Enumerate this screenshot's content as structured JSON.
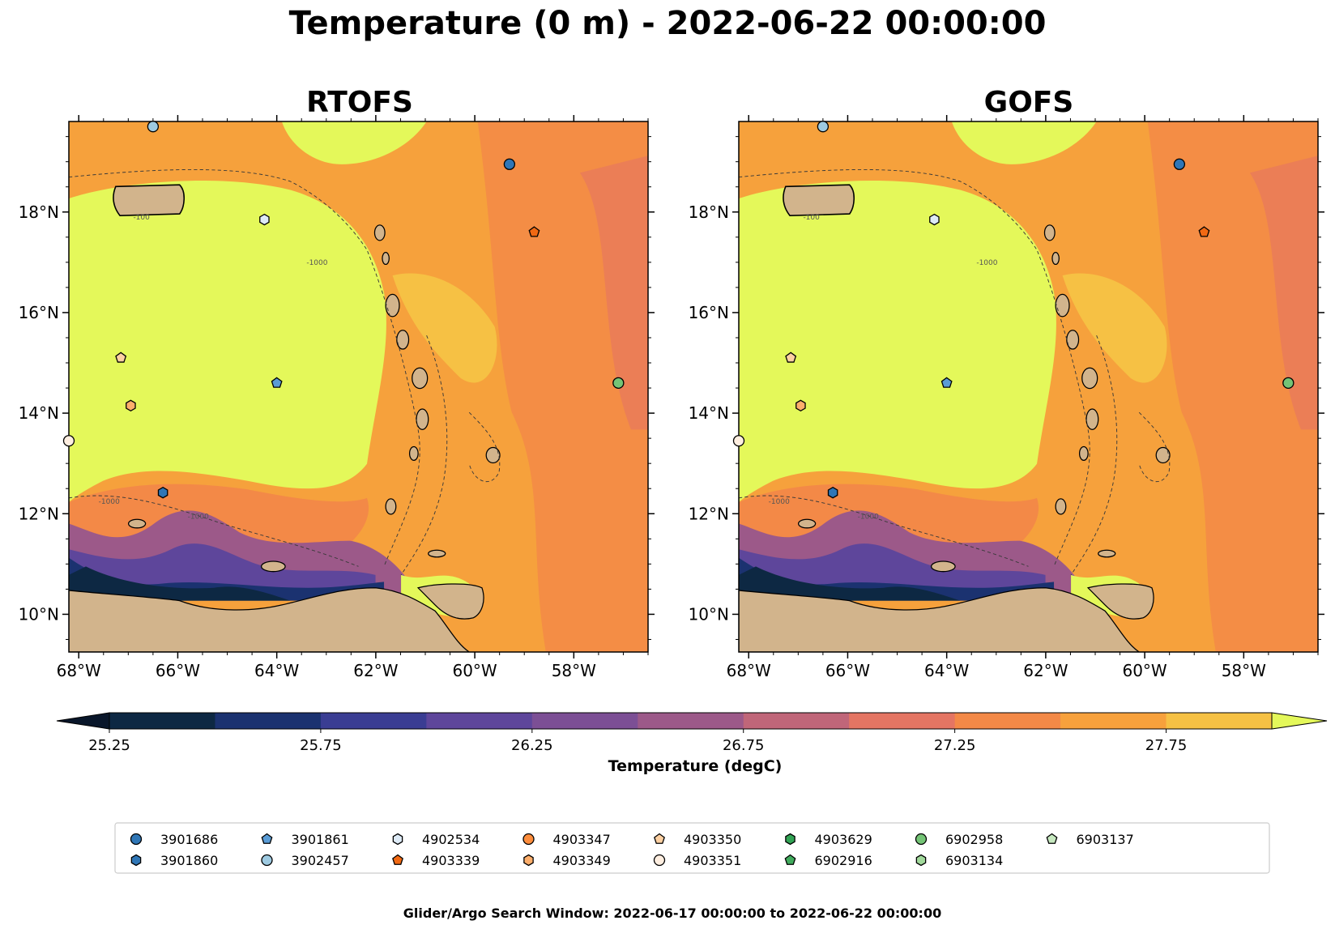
{
  "figure": {
    "title": "Temperature (0 m) - 2022-06-22 00:00:00",
    "footer": "Glider/Argo Search Window: 2022-06-17 00:00:00 to 2022-06-22 00:00:00"
  },
  "map": {
    "lon_range": [
      -68.2,
      -56.5
    ],
    "lat_range": [
      9.25,
      19.8
    ],
    "lon_ticks": [
      "68°W",
      "66°W",
      "64°W",
      "62°W",
      "60°W",
      "58°W"
    ],
    "lat_ticks": [
      "10°N",
      "12°N",
      "14°N",
      "16°N",
      "18°N"
    ],
    "bathymetry_contours": [
      "-100",
      "-1000"
    ],
    "land_color": "#d2b48c",
    "lake_color": "#9ab6d8"
  },
  "panels": [
    {
      "id": "rtofs",
      "title": "RTOFS"
    },
    {
      "id": "gofs",
      "title": "GOFS"
    }
  ],
  "colorbar": {
    "label": "Temperature (degC)",
    "tick_labels": [
      "25.25",
      "25.75",
      "26.25",
      "26.75",
      "27.25",
      "27.75"
    ],
    "colors": [
      "#0d2843",
      "#1b3270",
      "#3a3d93",
      "#5e469b",
      "#7c4f95",
      "#9c5989",
      "#c06679",
      "#e47563",
      "#f38947",
      "#f7a13c",
      "#f6c144"
    ],
    "under_color": "#09162a",
    "over_color": "#e4f85a",
    "extend": "both"
  },
  "legend": {
    "entries": [
      {
        "id": "3901686",
        "marker": "circle",
        "color": "#2f76b6"
      },
      {
        "id": "3901860",
        "marker": "hexagon",
        "color": "#2f76b6"
      },
      {
        "id": "3901861",
        "marker": "pentagon",
        "color": "#5a9cd6"
      },
      {
        "id": "3902457",
        "marker": "circle",
        "color": "#9ecae1"
      },
      {
        "id": "4902534",
        "marker": "hexagon",
        "color": "#deebf7"
      },
      {
        "id": "4903339",
        "marker": "pentagon",
        "color": "#f16913"
      },
      {
        "id": "4903347",
        "marker": "circle",
        "color": "#fd8d3c"
      },
      {
        "id": "4903349",
        "marker": "hexagon",
        "color": "#fdae6b"
      },
      {
        "id": "4903350",
        "marker": "pentagon",
        "color": "#fdd0a2"
      },
      {
        "id": "4903351",
        "marker": "circle",
        "color": "#feeee0"
      },
      {
        "id": "4903629",
        "marker": "hexagon",
        "color": "#31a354"
      },
      {
        "id": "6902916",
        "marker": "pentagon",
        "color": "#41ab5d"
      },
      {
        "id": "6902958",
        "marker": "circle",
        "color": "#74c476"
      },
      {
        "id": "6903134",
        "marker": "hexagon",
        "color": "#a1d99b"
      },
      {
        "id": "6903137",
        "marker": "pentagon",
        "color": "#c7e9c0"
      }
    ]
  },
  "stations": [
    {
      "id": "3901686",
      "lon": -59.3,
      "lat": 18.95
    },
    {
      "id": "3901860",
      "lon": -66.3,
      "lat": 12.42
    },
    {
      "id": "3901861",
      "lon": -64.0,
      "lat": 14.6
    },
    {
      "id": "3902457",
      "lon": -66.5,
      "lat": 19.7
    },
    {
      "id": "4902534",
      "lon": -64.25,
      "lat": 17.85
    },
    {
      "id": "4903339",
      "lon": -58.8,
      "lat": 17.6
    },
    {
      "id": "4903349",
      "lon": -66.95,
      "lat": 14.15
    },
    {
      "id": "4903350",
      "lon": -67.15,
      "lat": 15.1
    },
    {
      "id": "4903351",
      "lon": -68.2,
      "lat": 13.45
    },
    {
      "id": "6902958",
      "lon": -57.1,
      "lat": 14.6
    }
  ]
}
